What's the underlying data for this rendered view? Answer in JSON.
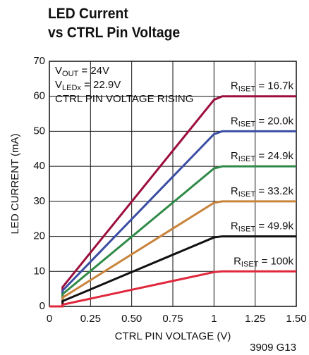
{
  "chart_data": {
    "type": "line",
    "title": "LED Current\nvs CTRL Pin Voltage",
    "xlabel": "CTRL PIN VOLTAGE (V)",
    "ylabel": "LED CURRENT (mA)",
    "annotations": [
      "VOUT = 24V",
      "VLEDx = 22.9V",
      "CTRL PIN VOLTAGE RISING"
    ],
    "footnote": "3909 G13",
    "x": [
      0,
      0.08,
      0.08,
      1.0,
      1.05,
      1.5
    ],
    "series": [
      {
        "name": "RISET = 16.7k",
        "color": "#9c0f3c",
        "values": [
          0,
          0,
          5.5,
          59,
          60,
          60
        ]
      },
      {
        "name": "RISET = 20.0k",
        "color": "#3b4ea3",
        "values": [
          0,
          0,
          4.5,
          49.2,
          50,
          50
        ]
      },
      {
        "name": "RISET = 24.9k",
        "color": "#2f8a47",
        "values": [
          0,
          0,
          3.5,
          39.4,
          40,
          40
        ]
      },
      {
        "name": "RISET = 33.2k",
        "color": "#c9843c",
        "values": [
          0,
          0,
          2.5,
          29.6,
          30,
          30
        ]
      },
      {
        "name": "RISET = 49.9k",
        "color": "#111111",
        "values": [
          0,
          0,
          1.5,
          19.7,
          20,
          20
        ]
      },
      {
        "name": "RISET = 100k",
        "color": "#e0283d",
        "values": [
          0,
          0,
          0.5,
          9.8,
          10,
          10
        ]
      }
    ],
    "xlim": [
      0,
      1.5
    ],
    "ylim": [
      0,
      70
    ],
    "xticks": [
      0,
      0.25,
      {
        "value": 0.5,
        "label": "0.50"
      },
      0.75,
      1,
      1.25,
      {
        "value": 1.5,
        "label": "1.50"
      }
    ],
    "yticks": [
      0,
      10,
      20,
      30,
      40,
      50,
      60,
      70
    ],
    "grid": true
  }
}
